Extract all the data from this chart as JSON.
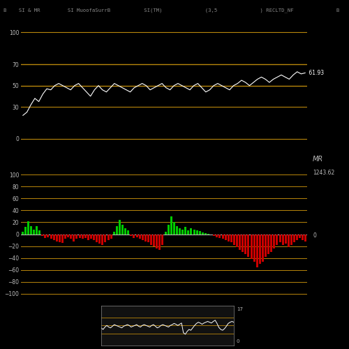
{
  "title_text": "B    SI & MR         SI MuoofaSurrB           SI(TM)              (3,5              ) RECLTD_NF              B",
  "bg_color": "#000000",
  "rsi_label": "61.93",
  "mrsi_label": "1243.62",
  "rsi_line_color": "#ffffff",
  "mrsi_zero_line_color": "#c0c0c0",
  "hline_color": "#b8860b",
  "rsi_hlines": [
    100,
    70,
    50,
    30,
    0
  ],
  "mrsi_hlines": [
    100,
    80,
    60,
    40,
    20,
    0,
    -20,
    -40,
    -60,
    -80,
    -100
  ],
  "rsi_ylim": [
    -8,
    118
  ],
  "mrsi_ylim": [
    -108,
    118
  ],
  "tick_color": "#bbbbbb",
  "rsi_values": [
    22,
    25,
    32,
    38,
    35,
    42,
    47,
    46,
    50,
    52,
    50,
    48,
    46,
    50,
    52,
    48,
    44,
    40,
    46,
    50,
    46,
    44,
    48,
    52,
    50,
    48,
    46,
    44,
    48,
    50,
    52,
    50,
    46,
    48,
    50,
    52,
    48,
    46,
    50,
    52,
    50,
    48,
    46,
    50,
    52,
    48,
    44,
    46,
    50,
    52,
    50,
    48,
    46,
    50,
    52,
    55,
    53,
    50,
    53,
    56,
    58,
    56,
    53,
    56,
    58,
    60,
    58,
    56,
    60,
    63,
    61,
    61.93
  ],
  "mrsi_values": [
    4,
    12,
    22,
    14,
    8,
    14,
    6,
    -3,
    -6,
    -5,
    -8,
    -10,
    -12,
    -14,
    -15,
    -8,
    -5,
    -8,
    -12,
    -8,
    -6,
    -8,
    -6,
    -10,
    -8,
    -10,
    -14,
    -16,
    -18,
    -14,
    -10,
    -8,
    4,
    14,
    24,
    16,
    10,
    6,
    -3,
    -6,
    -5,
    -8,
    -10,
    -12,
    -14,
    -18,
    -20,
    -24,
    -26,
    -18,
    4,
    16,
    30,
    20,
    14,
    10,
    8,
    12,
    6,
    10,
    8,
    6,
    5,
    3,
    2,
    1,
    -1,
    -3,
    -5,
    -6,
    -8,
    -10,
    -12,
    -14,
    -18,
    -22,
    -26,
    -30,
    -34,
    -38,
    -42,
    -46,
    -56,
    -50,
    -46,
    -38,
    -34,
    -30,
    -24,
    -18,
    -14,
    -18,
    -16,
    -22,
    -18,
    -14,
    -10,
    -6,
    -10,
    -12
  ],
  "mini_rsi_values": [
    44,
    40,
    46,
    50,
    46,
    44,
    48,
    52,
    50,
    48,
    46,
    44,
    48,
    50,
    52,
    50,
    46,
    48,
    50,
    52,
    48,
    46,
    50,
    52,
    50,
    48,
    46,
    50,
    52,
    48,
    44,
    46,
    50,
    52,
    50,
    48,
    46,
    50,
    52,
    55,
    53,
    50,
    53,
    56,
    32,
    28,
    35,
    40,
    38,
    44,
    50,
    55,
    58,
    56,
    53,
    56,
    58,
    60,
    58,
    56,
    60,
    63,
    55,
    45,
    40,
    38,
    42,
    48,
    55,
    58,
    60,
    58
  ],
  "mini_label": "17",
  "mini_label2": "0",
  "mini_bg": "#111111"
}
